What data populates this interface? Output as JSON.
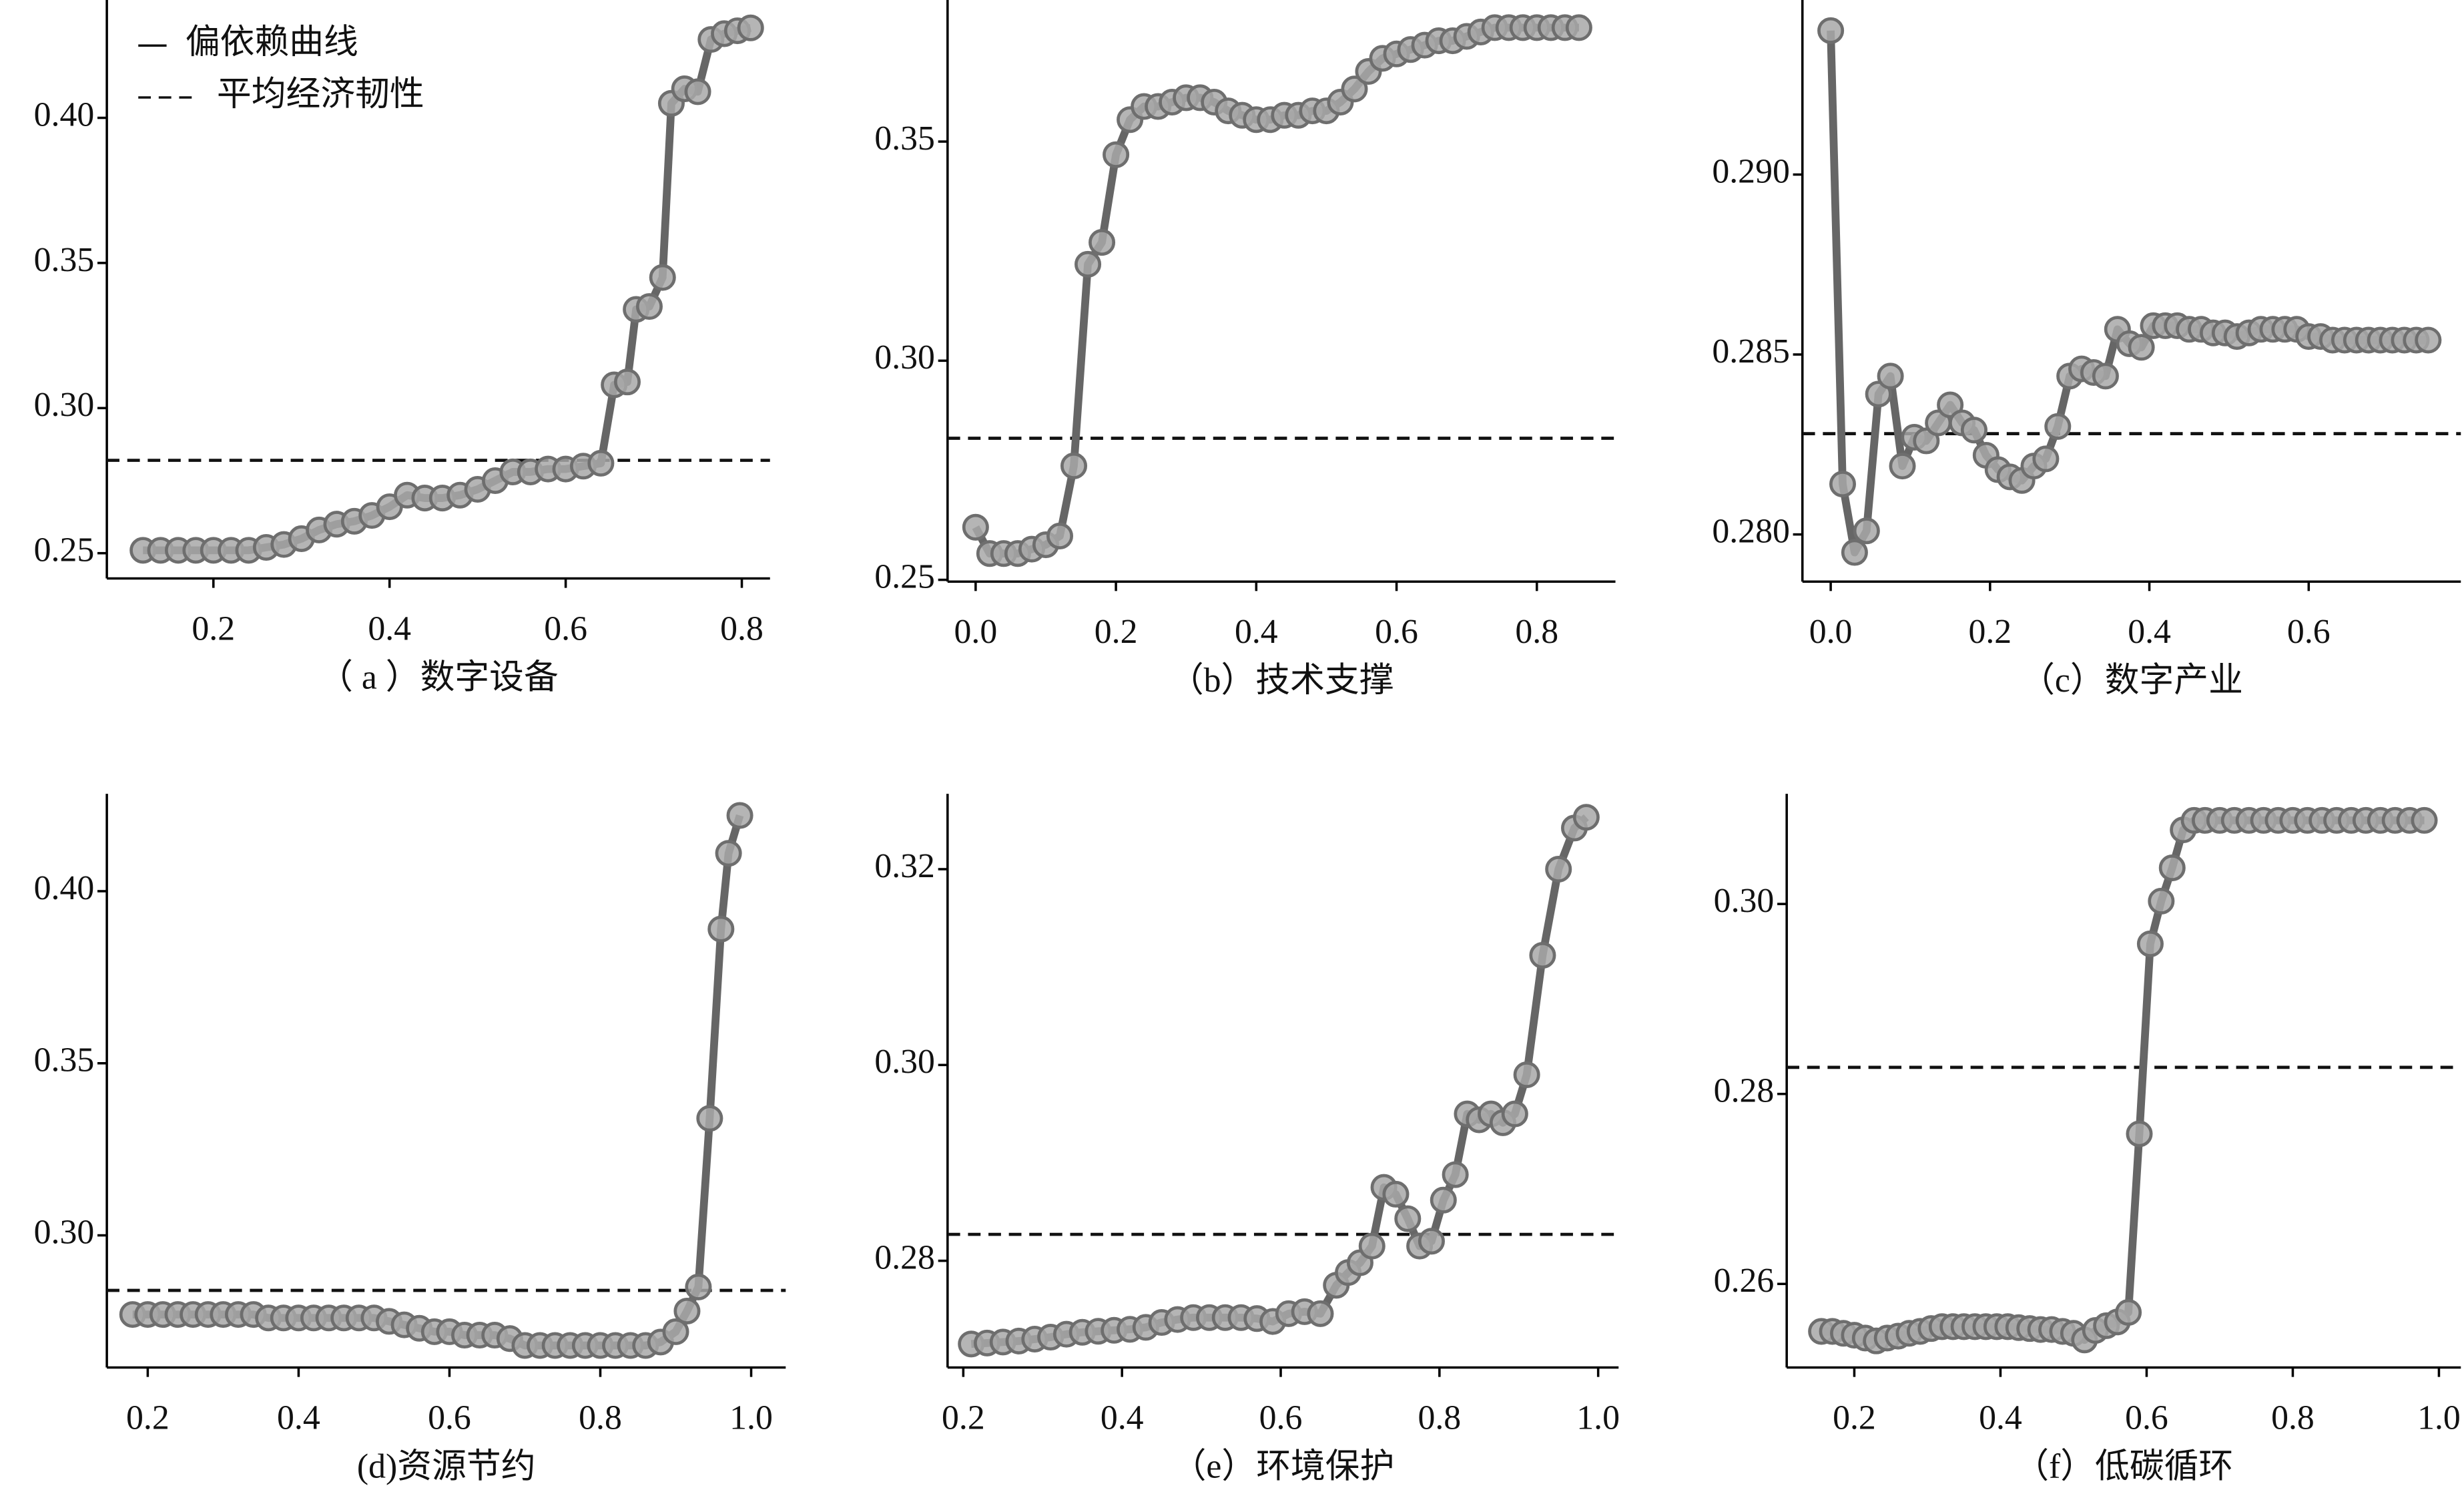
{
  "chart_data": [
    {
      "type": "line",
      "title": "（ a ）数字设备",
      "x": [
        0.12,
        0.14,
        0.16,
        0.18,
        0.2,
        0.22,
        0.24,
        0.26,
        0.28,
        0.3,
        0.32,
        0.34,
        0.36,
        0.38,
        0.4,
        0.42,
        0.44,
        0.46,
        0.48,
        0.5,
        0.52,
        0.54,
        0.56,
        0.58,
        0.6,
        0.62,
        0.64,
        0.655,
        0.67,
        0.68,
        0.695,
        0.71,
        0.72,
        0.735,
        0.75,
        0.765,
        0.78,
        0.795,
        0.81
      ],
      "series": [
        {
          "color": "#666666",
          "values": [
            0.251,
            0.251,
            0.251,
            0.251,
            0.251,
            0.251,
            0.251,
            0.252,
            0.253,
            0.255,
            0.258,
            0.26,
            0.261,
            0.263,
            0.266,
            0.27,
            0.269,
            0.269,
            0.27,
            0.272,
            0.275,
            0.278,
            0.278,
            0.279,
            0.279,
            0.28,
            0.281,
            0.308,
            0.309,
            0.334,
            0.335,
            0.345,
            0.405,
            0.41,
            0.409,
            0.427,
            0.429,
            0.43,
            0.431
          ]
        }
      ],
      "mean": 0.282,
      "legend": {
        "position": "upper left",
        "entries": [
          "偏依赖曲线",
          "平均经济韧性"
        ]
      },
      "xlim": [
        0.079,
        0.832
      ],
      "xticks": [
        0.2,
        0.4,
        0.6,
        0.8
      ],
      "ylim": [
        0.2413,
        0.4406
      ],
      "yticks": [
        0.25,
        {
          "value": 0.3,
          "label": "0.30"
        },
        0.35,
        {
          "value": 0.4,
          "label": "0.40"
        }
      ]
    },
    {
      "type": "line",
      "title": "（b）技术支撑",
      "x": [
        0.0,
        0.02,
        0.04,
        0.06,
        0.08,
        0.1,
        0.12,
        0.14,
        0.16,
        0.18,
        0.2,
        0.22,
        0.24,
        0.26,
        0.28,
        0.3,
        0.32,
        0.34,
        0.36,
        0.38,
        0.4,
        0.42,
        0.44,
        0.46,
        0.48,
        0.5,
        0.52,
        0.54,
        0.56,
        0.58,
        0.6,
        0.62,
        0.64,
        0.66,
        0.68,
        0.7,
        0.72,
        0.74,
        0.76,
        0.78,
        0.8,
        0.82,
        0.84,
        0.86
      ],
      "series": [
        {
          "color": "#666666",
          "values": [
            0.262,
            0.256,
            0.256,
            0.256,
            0.257,
            0.258,
            0.26,
            0.276,
            0.322,
            0.327,
            0.347,
            0.355,
            0.358,
            0.358,
            0.359,
            0.36,
            0.36,
            0.359,
            0.357,
            0.356,
            0.355,
            0.355,
            0.356,
            0.356,
            0.357,
            0.357,
            0.359,
            0.362,
            0.366,
            0.369,
            0.37,
            0.371,
            0.372,
            0.373,
            0.373,
            0.374,
            0.375,
            0.376,
            0.376,
            0.376,
            0.376,
            0.376,
            0.376,
            0.376
          ]
        }
      ],
      "mean": 0.2823,
      "xlim": [
        -0.04,
        0.912
      ],
      "xticks": [
        {
          "value": 0,
          "label": "0.0"
        },
        0.2,
        0.4,
        0.6,
        0.8
      ],
      "ylim": [
        0.2496,
        0.3823
      ],
      "yticks": [
        0.25,
        {
          "value": 0.3,
          "label": "0.30"
        },
        0.35
      ]
    },
    {
      "type": "line",
      "title": "（c）数字产业",
      "x": [
        0,
        0.015,
        0.03,
        0.045,
        0.06,
        0.075,
        0.09,
        0.105,
        0.12,
        0.135,
        0.15,
        0.165,
        0.18,
        0.195,
        0.21,
        0.225,
        0.24,
        0.255,
        0.27,
        0.285,
        0.3,
        0.315,
        0.33,
        0.345,
        0.36,
        0.375,
        0.39,
        0.405,
        0.42,
        0.435,
        0.45,
        0.465,
        0.48,
        0.495,
        0.51,
        0.525,
        0.54,
        0.555,
        0.57,
        0.585,
        0.6,
        0.615,
        0.63,
        0.645,
        0.66,
        0.675,
        0.69,
        0.705,
        0.72,
        0.735,
        0.75
      ],
      "series": [
        {
          "color": "#666666",
          "values": [
            0.294,
            0.2814,
            0.2795,
            0.2801,
            0.2839,
            0.2844,
            0.2819,
            0.2827,
            0.2826,
            0.2831,
            0.2836,
            0.2831,
            0.2829,
            0.2822,
            0.2818,
            0.2816,
            0.2815,
            0.2819,
            0.2821,
            0.283,
            0.2844,
            0.2846,
            0.2845,
            0.2844,
            0.2857,
            0.2853,
            0.2852,
            0.2858,
            0.2858,
            0.2858,
            0.2857,
            0.2857,
            0.2856,
            0.2856,
            0.2855,
            0.2856,
            0.2857,
            0.2857,
            0.2857,
            0.2857,
            0.2855,
            0.2855,
            0.2854,
            0.2854,
            0.2854,
            0.2854,
            0.2854,
            0.2854,
            0.2854,
            0.2854,
            0.2854
          ]
        }
      ],
      "mean": 0.2828,
      "xlim": [
        -0.0355,
        0.791
      ],
      "xticks": [
        {
          "value": 0,
          "label": "0.0"
        },
        0.2,
        0.4,
        0.6
      ],
      "ylim": [
        0.27869,
        0.29485
      ],
      "yticks": [
        {
          "value": 0.28,
          "label": "0.280"
        },
        0.285,
        {
          "value": 0.29,
          "label": "0.290"
        }
      ]
    },
    {
      "type": "line",
      "title": "(d)资源节约",
      "x": [
        0.18,
        0.2,
        0.22,
        0.24,
        0.26,
        0.28,
        0.3,
        0.32,
        0.34,
        0.36,
        0.38,
        0.4,
        0.42,
        0.44,
        0.46,
        0.48,
        0.5,
        0.52,
        0.54,
        0.56,
        0.58,
        0.6,
        0.62,
        0.64,
        0.66,
        0.68,
        0.7,
        0.72,
        0.74,
        0.76,
        0.78,
        0.8,
        0.82,
        0.84,
        0.86,
        0.88,
        0.9,
        0.915,
        0.93,
        0.945,
        0.96,
        0.97,
        0.985
      ],
      "series": [
        {
          "color": "#666666",
          "values": [
            0.277,
            0.277,
            0.277,
            0.277,
            0.277,
            0.277,
            0.277,
            0.277,
            0.277,
            0.276,
            0.276,
            0.276,
            0.276,
            0.276,
            0.276,
            0.276,
            0.276,
            0.275,
            0.274,
            0.273,
            0.272,
            0.272,
            0.271,
            0.271,
            0.271,
            0.27,
            0.268,
            0.268,
            0.268,
            0.268,
            0.268,
            0.268,
            0.268,
            0.268,
            0.268,
            0.269,
            0.272,
            0.278,
            0.285,
            0.334,
            0.389,
            0.411,
            0.422
          ]
        }
      ],
      "mean": 0.284,
      "xlim": [
        0.1458,
        1.0458
      ],
      "xticks": [
        0.2,
        0.4,
        0.6,
        0.8,
        {
          "value": 1,
          "label": "1.0"
        }
      ],
      "ylim": [
        0.2616,
        0.4283
      ],
      "yticks": [
        {
          "value": 0.3,
          "label": "0.30"
        },
        0.35,
        {
          "value": 0.4,
          "label": "0.40"
        }
      ]
    },
    {
      "type": "line",
      "title": "（e）环境保护",
      "x": [
        0.21,
        0.23,
        0.25,
        0.27,
        0.29,
        0.31,
        0.33,
        0.35,
        0.37,
        0.39,
        0.41,
        0.43,
        0.45,
        0.47,
        0.49,
        0.51,
        0.53,
        0.55,
        0.57,
        0.59,
        0.61,
        0.63,
        0.65,
        0.67,
        0.685,
        0.7,
        0.715,
        0.73,
        0.745,
        0.76,
        0.775,
        0.79,
        0.805,
        0.82,
        0.835,
        0.85,
        0.865,
        0.88,
        0.895,
        0.91,
        0.93,
        0.95,
        0.97,
        0.985
      ],
      "series": [
        {
          "color": "#666666",
          "values": [
            0.2715,
            0.2716,
            0.2717,
            0.2718,
            0.272,
            0.2722,
            0.2725,
            0.2727,
            0.2728,
            0.2729,
            0.273,
            0.2732,
            0.2737,
            0.274,
            0.2742,
            0.2742,
            0.2742,
            0.2742,
            0.2741,
            0.2738,
            0.2746,
            0.2748,
            0.2746,
            0.2775,
            0.2788,
            0.2798,
            0.2815,
            0.2875,
            0.2868,
            0.2843,
            0.2815,
            0.282,
            0.2862,
            0.2888,
            0.295,
            0.2944,
            0.295,
            0.2941,
            0.295,
            0.299,
            0.3112,
            0.32,
            0.3242,
            0.3253
          ]
        }
      ],
      "mean": 0.2827,
      "xlim": [
        0.1802,
        1.0257
      ],
      "xticks": [
        0.2,
        0.4,
        0.6,
        0.8,
        {
          "value": 1,
          "label": "1.0"
        }
      ],
      "ylim": [
        0.2691,
        0.3277
      ],
      "yticks": [
        {
          "value": 0.28,
          "label": "0.28"
        },
        {
          "value": 0.3,
          "label": "0.30"
        },
        0.32
      ]
    },
    {
      "type": "line",
      "title": "（f）低碳循环",
      "x": [
        0.155,
        0.17,
        0.185,
        0.2,
        0.215,
        0.23,
        0.245,
        0.26,
        0.275,
        0.29,
        0.305,
        0.32,
        0.335,
        0.35,
        0.365,
        0.38,
        0.395,
        0.41,
        0.425,
        0.44,
        0.455,
        0.47,
        0.485,
        0.5,
        0.515,
        0.53,
        0.545,
        0.56,
        0.575,
        0.59,
        0.605,
        0.62,
        0.635,
        0.65,
        0.665,
        0.68,
        0.7,
        0.72,
        0.74,
        0.76,
        0.78,
        0.8,
        0.82,
        0.84,
        0.86,
        0.88,
        0.9,
        0.92,
        0.94,
        0.96,
        0.98
      ],
      "series": [
        {
          "color": "#666666",
          "values": [
            0.255,
            0.255,
            0.2548,
            0.2546,
            0.2543,
            0.254,
            0.2543,
            0.2545,
            0.2548,
            0.255,
            0.2553,
            0.2555,
            0.2555,
            0.2555,
            0.2555,
            0.2555,
            0.2555,
            0.2555,
            0.2554,
            0.2553,
            0.2552,
            0.2552,
            0.255,
            0.2548,
            0.2541,
            0.2551,
            0.2556,
            0.256,
            0.257,
            0.2758,
            0.2958,
            0.3003,
            0.3038,
            0.3078,
            0.3088,
            0.3088,
            0.3088,
            0.3088,
            0.3088,
            0.3088,
            0.3088,
            0.3088,
            0.3088,
            0.3088,
            0.3088,
            0.3088,
            0.3088,
            0.3088,
            0.3088,
            0.3088,
            0.3088
          ]
        }
      ],
      "mean": 0.2828,
      "xlim": [
        0.1075,
        1.03
      ],
      "xticks": [
        0.2,
        0.4,
        0.6,
        0.8,
        {
          "value": 1,
          "label": "1.0"
        }
      ],
      "ylim": [
        0.2512,
        0.3116
      ],
      "yticks": [
        0.26,
        0.28,
        {
          "value": 0.3,
          "label": "0.30"
        }
      ]
    }
  ]
}
